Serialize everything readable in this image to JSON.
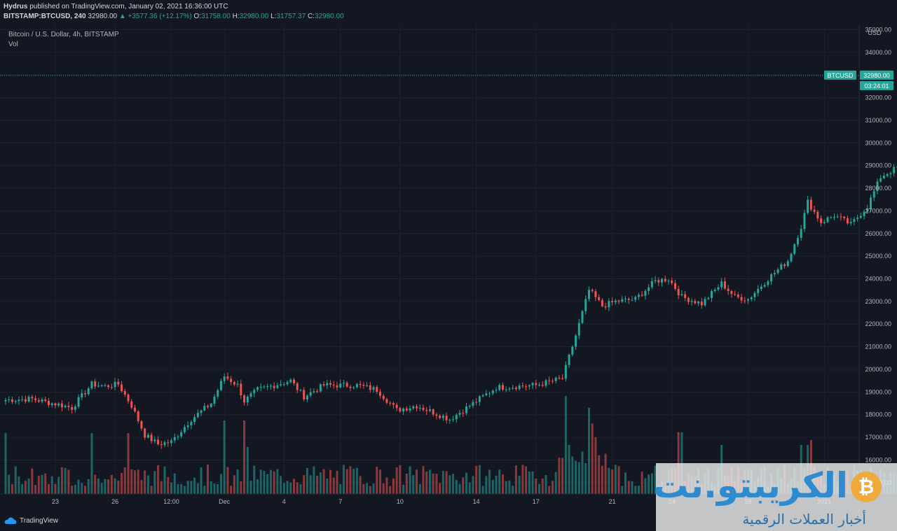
{
  "header": {
    "publisher": "Hydrus",
    "published_text": "published on TradingView.com, January 02, 2021 16:36:00 UTC",
    "symbol_interval": "BITSTAMP:BTCUSD, 240",
    "last": "32980.00",
    "change": "▲ +3577.36 (+12.17%)",
    "o_label": "O:",
    "o": "31758.00",
    "h_label": "H:",
    "h": "32980.00",
    "l_label": "L:",
    "l": "31757.37",
    "c_label": "C:",
    "c": "32980.00"
  },
  "legend": {
    "instrument": "Bitcoin / U.S. Dollar, 4h, BITSTAMP",
    "volume": "Vol"
  },
  "price_axis": {
    "currency": "USD",
    "ticks": [
      "15000.00",
      "16000.00",
      "17000.00",
      "18000.00",
      "19000.00",
      "20000.00",
      "21000.00",
      "22000.00",
      "23000.00",
      "24000.00",
      "25000.00",
      "26000.00",
      "27000.00",
      "28000.00",
      "29000.00",
      "30000.00",
      "31000.00",
      "32000.00",
      "33000.00",
      "34000.00",
      "35000.00"
    ],
    "last_price_label": "32980.00",
    "symbol_tag": "BTCUSD",
    "countdown": "03:24:01"
  },
  "time_axis": {
    "ticks": [
      "23",
      "26",
      "12:00",
      "Dec",
      "4",
      "7",
      "10",
      "14",
      "17",
      "21",
      "24",
      "28",
      "2021",
      "4"
    ]
  },
  "chart_data": {
    "type": "candlestick",
    "title": "Bitcoin / U.S. Dollar, 4h, BITSTAMP",
    "ylim": [
      14500,
      35200
    ],
    "last_price": 32980,
    "grid": true,
    "up_color": "#26a69a",
    "down_color": "#ef5350",
    "anchors": [
      {
        "i": 0,
        "p": 18650
      },
      {
        "i": 8,
        "p": 18700
      },
      {
        "i": 14,
        "p": 18500
      },
      {
        "i": 16,
        "p": 18450
      },
      {
        "i": 20,
        "p": 18300
      },
      {
        "i": 26,
        "p": 19350
      },
      {
        "i": 30,
        "p": 19250
      },
      {
        "i": 34,
        "p": 19350
      },
      {
        "i": 38,
        "p": 18400
      },
      {
        "i": 42,
        "p": 17100
      },
      {
        "i": 46,
        "p": 16700
      },
      {
        "i": 50,
        "p": 16800
      },
      {
        "i": 56,
        "p": 17800
      },
      {
        "i": 62,
        "p": 18500
      },
      {
        "i": 66,
        "p": 19700
      },
      {
        "i": 70,
        "p": 19300
      },
      {
        "i": 72,
        "p": 18600
      },
      {
        "i": 76,
        "p": 19100
      },
      {
        "i": 86,
        "p": 19500
      },
      {
        "i": 90,
        "p": 18800
      },
      {
        "i": 96,
        "p": 19300
      },
      {
        "i": 106,
        "p": 19300
      },
      {
        "i": 112,
        "p": 19100
      },
      {
        "i": 118,
        "p": 18200
      },
      {
        "i": 124,
        "p": 18400
      },
      {
        "i": 134,
        "p": 17800
      },
      {
        "i": 142,
        "p": 18600
      },
      {
        "i": 148,
        "p": 19200
      },
      {
        "i": 160,
        "p": 19300
      },
      {
        "i": 168,
        "p": 19600
      },
      {
        "i": 172,
        "p": 21500
      },
      {
        "i": 176,
        "p": 23500
      },
      {
        "i": 180,
        "p": 22800
      },
      {
        "i": 184,
        "p": 23000
      },
      {
        "i": 190,
        "p": 23100
      },
      {
        "i": 196,
        "p": 23900
      },
      {
        "i": 200,
        "p": 24000
      },
      {
        "i": 204,
        "p": 23200
      },
      {
        "i": 210,
        "p": 22900
      },
      {
        "i": 216,
        "p": 23800
      },
      {
        "i": 220,
        "p": 23200
      },
      {
        "i": 224,
        "p": 23100
      },
      {
        "i": 230,
        "p": 24000
      },
      {
        "i": 236,
        "p": 24800
      },
      {
        "i": 240,
        "p": 26300
      },
      {
        "i": 242,
        "p": 27400
      },
      {
        "i": 246,
        "p": 26500
      },
      {
        "i": 250,
        "p": 26800
      },
      {
        "i": 255,
        "p": 26400
      },
      {
        "i": 260,
        "p": 27200
      },
      {
        "i": 264,
        "p": 28500
      },
      {
        "i": 270,
        "p": 29000
      },
      {
        "i": 276,
        "p": 29200
      },
      {
        "i": 280,
        "p": 29500
      },
      {
        "i": 282,
        "p": 29800
      },
      {
        "i": 283,
        "p": 31758
      },
      {
        "i": 284,
        "p": 32980
      }
    ],
    "volume_spikes": [
      {
        "i": 0,
        "v": 0.62
      },
      {
        "i": 26,
        "v": 0.62
      },
      {
        "i": 37,
        "v": 0.62
      },
      {
        "i": 66,
        "v": 0.75
      },
      {
        "i": 72,
        "v": 0.75
      },
      {
        "i": 73,
        "v": 0.48
      },
      {
        "i": 169,
        "v": 1.0
      },
      {
        "i": 170,
        "v": 0.5
      },
      {
        "i": 176,
        "v": 0.88
      },
      {
        "i": 177,
        "v": 0.72
      },
      {
        "i": 178,
        "v": 0.58
      },
      {
        "i": 203,
        "v": 0.63
      },
      {
        "i": 204,
        "v": 0.63
      },
      {
        "i": 216,
        "v": 0.5
      },
      {
        "i": 240,
        "v": 0.5
      },
      {
        "i": 242,
        "v": 0.5
      },
      {
        "i": 243,
        "v": 0.55
      },
      {
        "i": 284,
        "v": 0.74
      }
    ]
  },
  "footer": {
    "brand": "TradingView"
  },
  "watermark": {
    "title": "الكريبتو.نت",
    "subtitle": "أخبار العملات الرقمية",
    "coin_symbol": "₿"
  }
}
